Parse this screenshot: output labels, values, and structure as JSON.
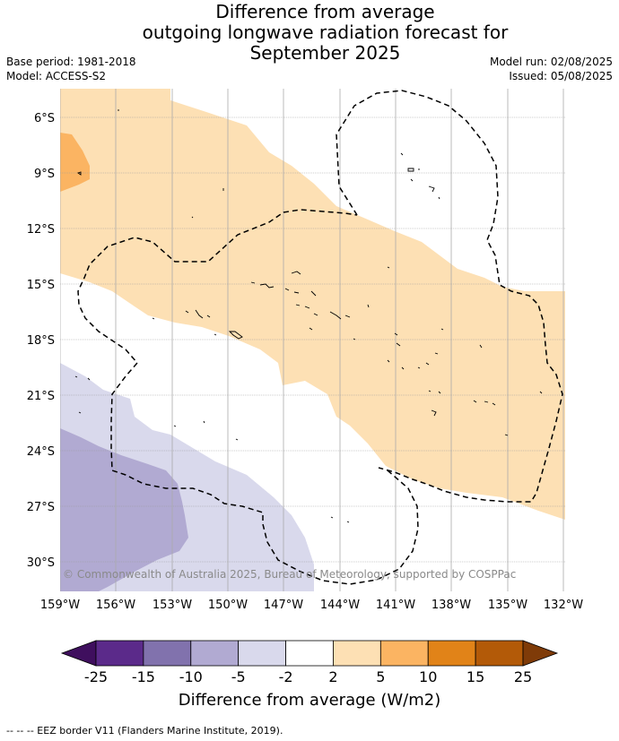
{
  "title": {
    "line1": "Difference from average",
    "line2": "outgoing longwave radiation forecast for",
    "line3": "September 2025"
  },
  "meta": {
    "base_period": "Base period: 1981-2018",
    "model": "Model: ACCESS-S2",
    "model_run": "Model run: 02/08/2025",
    "issued": "Issued: 05/08/2025"
  },
  "map": {
    "lat_labels": [
      "6°S",
      "9°S",
      "12°S",
      "15°S",
      "18°S",
      "21°S",
      "24°S",
      "27°S",
      "30°S"
    ],
    "lon_labels": [
      "159°W",
      "156°W",
      "153°W",
      "150°W",
      "147°W",
      "144°W",
      "141°W",
      "138°W",
      "135°W",
      "132°W"
    ],
    "copyright": "© Commonwealth of Australia 2025, Bureau of Meteorology, supported by COSPPac"
  },
  "colorbar": {
    "ticks": [
      "-25",
      "-15",
      "-10",
      "-5",
      "-2",
      "2",
      "5",
      "10",
      "15",
      "25"
    ],
    "colors": [
      "#3f0f5e",
      "#5b2a8a",
      "#8172ad",
      "#b1aad2",
      "#d9d9ec",
      "#ffffff",
      "#fde0b4",
      "#fbb462",
      "#e18318",
      "#b35a08",
      "#7f3b08"
    ],
    "title": "Difference from average (W/m2)"
  },
  "footnote": "--  --  -- EEZ border V11 (Flanders Marine Institute, 2019)."
}
